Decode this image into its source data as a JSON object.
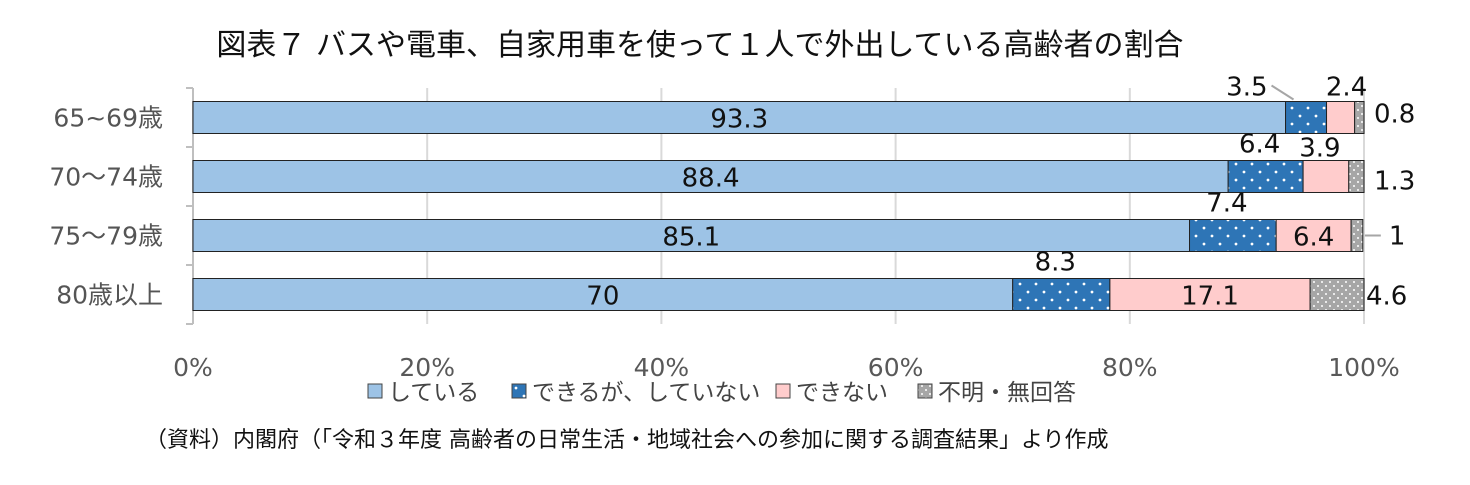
{
  "chart_data": {
    "type": "bar",
    "orientation": "horizontal",
    "stacked": "percent",
    "title": "図表７ バスや電車、自家用車を使って１人で外出している高齢者の割合",
    "categories": [
      "65~69歳",
      "70～74歳",
      "75～79歳",
      "80歳以上"
    ],
    "series": [
      {
        "name": "している",
        "values": [
          93.3,
          88.4,
          85.1,
          70
        ],
        "labels": [
          "93.3",
          "88.4",
          "85.1",
          "70"
        ]
      },
      {
        "name": "できるが、していない",
        "values": [
          3.5,
          6.4,
          7.4,
          8.3
        ],
        "labels": [
          "3.5",
          "6.4",
          "7.4",
          "8.3"
        ]
      },
      {
        "name": "できない",
        "values": [
          2.4,
          3.9,
          6.4,
          17.1
        ],
        "labels": [
          "2.4",
          "3.9",
          "6.4",
          "17.1"
        ]
      },
      {
        "name": "不明・無回答",
        "values": [
          0.8,
          1.3,
          1,
          4.6
        ],
        "labels": [
          "0.8",
          "1.3",
          "1",
          "4.6"
        ]
      }
    ],
    "xlim": [
      0,
      100
    ],
    "xticks": [
      "0%",
      "20%",
      "40%",
      "60%",
      "80%",
      "100%"
    ],
    "grid": true,
    "legend_position": "bottom",
    "source": "（資料）内閣府（「令和３年度 高齢者の日常生活・地域社会への参加に関する調査結果」より作成"
  },
  "colors": {
    "series": [
      "#9dc3e6",
      "#2e75b6",
      "#ffcccc",
      "#a6a6a6"
    ],
    "gridline": "#d9d9d9",
    "axis": "#bfbfbf"
  }
}
